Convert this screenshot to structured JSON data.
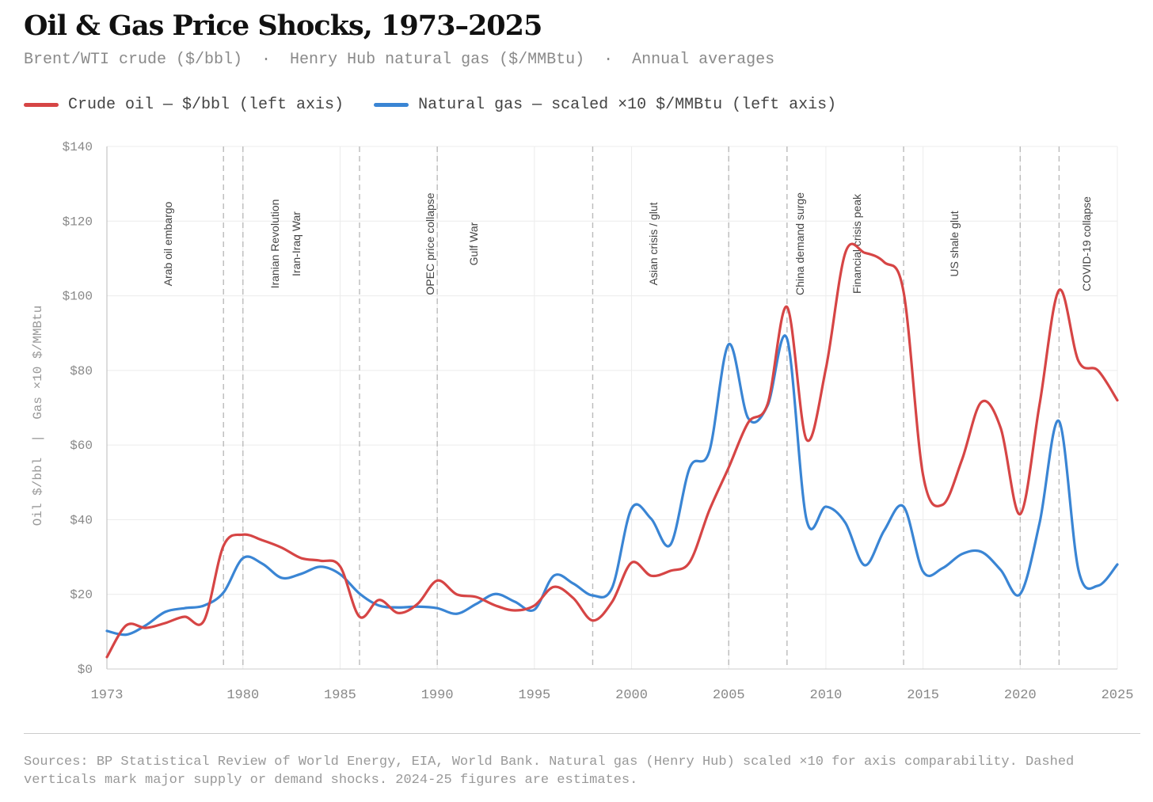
{
  "header": {
    "title": "Oil & Gas Price Shocks, 1973–2025",
    "subtitle": "Brent/WTI crude ($/bbl)  ·  Henry Hub natural gas ($/MMBtu)  ·  Annual averages"
  },
  "chart_data": {
    "type": "line",
    "title": "Oil & Gas Price Shocks, 1973–2025",
    "ylabel": "Oil $/bbl  |  Gas ×10 $/MMBtu",
    "xlabel": "",
    "xlim": [
      1973,
      2025
    ],
    "ylim": [
      0,
      140
    ],
    "grid": true,
    "legend_placement": "top-left",
    "x_ticks": [
      "1973",
      "1980",
      "1985",
      "1990",
      "1995",
      "2000",
      "2005",
      "2010",
      "2015",
      "2020",
      "2025"
    ],
    "y_ticks": [
      "$0",
      "$20",
      "$40",
      "$60",
      "$80",
      "$100",
      "$120",
      "$140"
    ],
    "x": [
      1973,
      1974,
      1975,
      1976,
      1977,
      1978,
      1979,
      1980,
      1981,
      1982,
      1983,
      1984,
      1985,
      1986,
      1987,
      1988,
      1989,
      1990,
      1991,
      1992,
      1993,
      1994,
      1995,
      1996,
      1997,
      1998,
      1999,
      2000,
      2001,
      2002,
      2003,
      2004,
      2005,
      2006,
      2007,
      2008,
      2009,
      2010,
      2011,
      2012,
      2013,
      2014,
      2015,
      2016,
      2017,
      2018,
      2019,
      2020,
      2021,
      2022,
      2023,
      2024,
      2025
    ],
    "series": [
      {
        "name": "Crude oil — $/bbl (left axis)",
        "color": "#d64545",
        "values": [
          3.2,
          11.7,
          11,
          12.3,
          14,
          13,
          33,
          36,
          34.5,
          32.5,
          29.7,
          29,
          27.5,
          14,
          18.5,
          15,
          17.5,
          23.7,
          20,
          19.3,
          17,
          15.7,
          17,
          22,
          19,
          13,
          18,
          28.5,
          25,
          26.3,
          28.7,
          42.5,
          54,
          66,
          71,
          97,
          61.5,
          80.5,
          111.5,
          111.5,
          109,
          101,
          52,
          44,
          56,
          71.5,
          64.5,
          41.5,
          71,
          101.5,
          82.5,
          80,
          72
        ]
      },
      {
        "name": "Natural gas — scaled ×10 $/MMBtu (left axis)",
        "color": "#3a85d4",
        "values": [
          10.2,
          9.2,
          11.7,
          15.3,
          16.3,
          17,
          20.5,
          29.7,
          28.2,
          24.4,
          25.5,
          27.4,
          25.4,
          20.2,
          17,
          16.5,
          16.7,
          16.3,
          14.8,
          17.4,
          20.1,
          18,
          15.9,
          25,
          22.9,
          19.7,
          21.8,
          43,
          40.3,
          33.3,
          54,
          58.3,
          87,
          67.2,
          70.6,
          88.5,
          40.1,
          43.5,
          39.2,
          27.8,
          37.1,
          43.5,
          26.1,
          27,
          30.8,
          31.4,
          26.5,
          20.1,
          39.2,
          66.4,
          26.5,
          22.3,
          28
        ]
      }
    ],
    "events": [
      {
        "year": 1973,
        "label": "Arab oil embargo"
      },
      {
        "year": 1979,
        "label": "Iranian Revolution"
      },
      {
        "year": 1980,
        "label": "Iran-Iraq War"
      },
      {
        "year": 1986,
        "label": "OPEC price collapse"
      },
      {
        "year": 1990,
        "label": "Gulf War"
      },
      {
        "year": 1998,
        "label": "Asian crisis / glut"
      },
      {
        "year": 2005,
        "label": "China demand surge"
      },
      {
        "year": 2008,
        "label": "Financial crisis peak"
      },
      {
        "year": 2014,
        "label": "US shale glut"
      },
      {
        "year": 2020,
        "label": "COVID-19 collapse"
      },
      {
        "year": 2022,
        "label": ""
      }
    ]
  },
  "footer": {
    "sources": "Sources: BP Statistical Review of World Energy, EIA, World Bank. Natural gas (Henry Hub) scaled ×10 for axis comparability. Dashed verticals mark major supply or demand shocks. 2024-25 figures are estimates."
  }
}
